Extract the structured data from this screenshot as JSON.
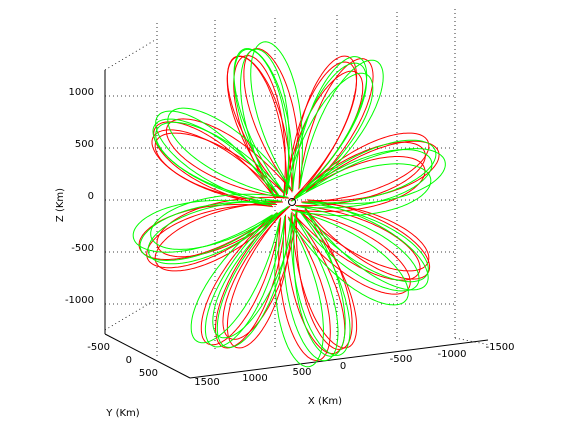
{
  "chart_data": {
    "type": "line",
    "title": "",
    "xlabel": "X (Km)",
    "ylabel": "Y (Km)",
    "zlabel": "Z (Km)",
    "xlim": [
      -1500,
      1500
    ],
    "ylim": [
      -500,
      500
    ],
    "zlim": [
      -1200,
      1200
    ],
    "x_ticks": [
      "1500",
      "1000",
      "500",
      "0",
      "-500",
      "-1000",
      "-1500"
    ],
    "y_ticks": [
      "-500",
      "0",
      "500"
    ],
    "z_ticks": [
      "1000",
      "500",
      "0",
      "-500",
      "-1000"
    ],
    "grid": true,
    "legend": false,
    "series": [
      {
        "color": "#ff0000",
        "petals": 8,
        "outer_radius_km": 1150,
        "inner_radius_km": 70
      },
      {
        "color": "#00ff00",
        "petals": 8,
        "outer_radius_km": 1180,
        "inner_radius_km": 80
      }
    ],
    "marker": {
      "shape": "circle",
      "x": 0,
      "y": 0,
      "z": 0
    }
  },
  "colors": {
    "background": "#ffffff",
    "axes": "#000000",
    "series_red": "#ff0000",
    "series_green": "#00ff00"
  }
}
